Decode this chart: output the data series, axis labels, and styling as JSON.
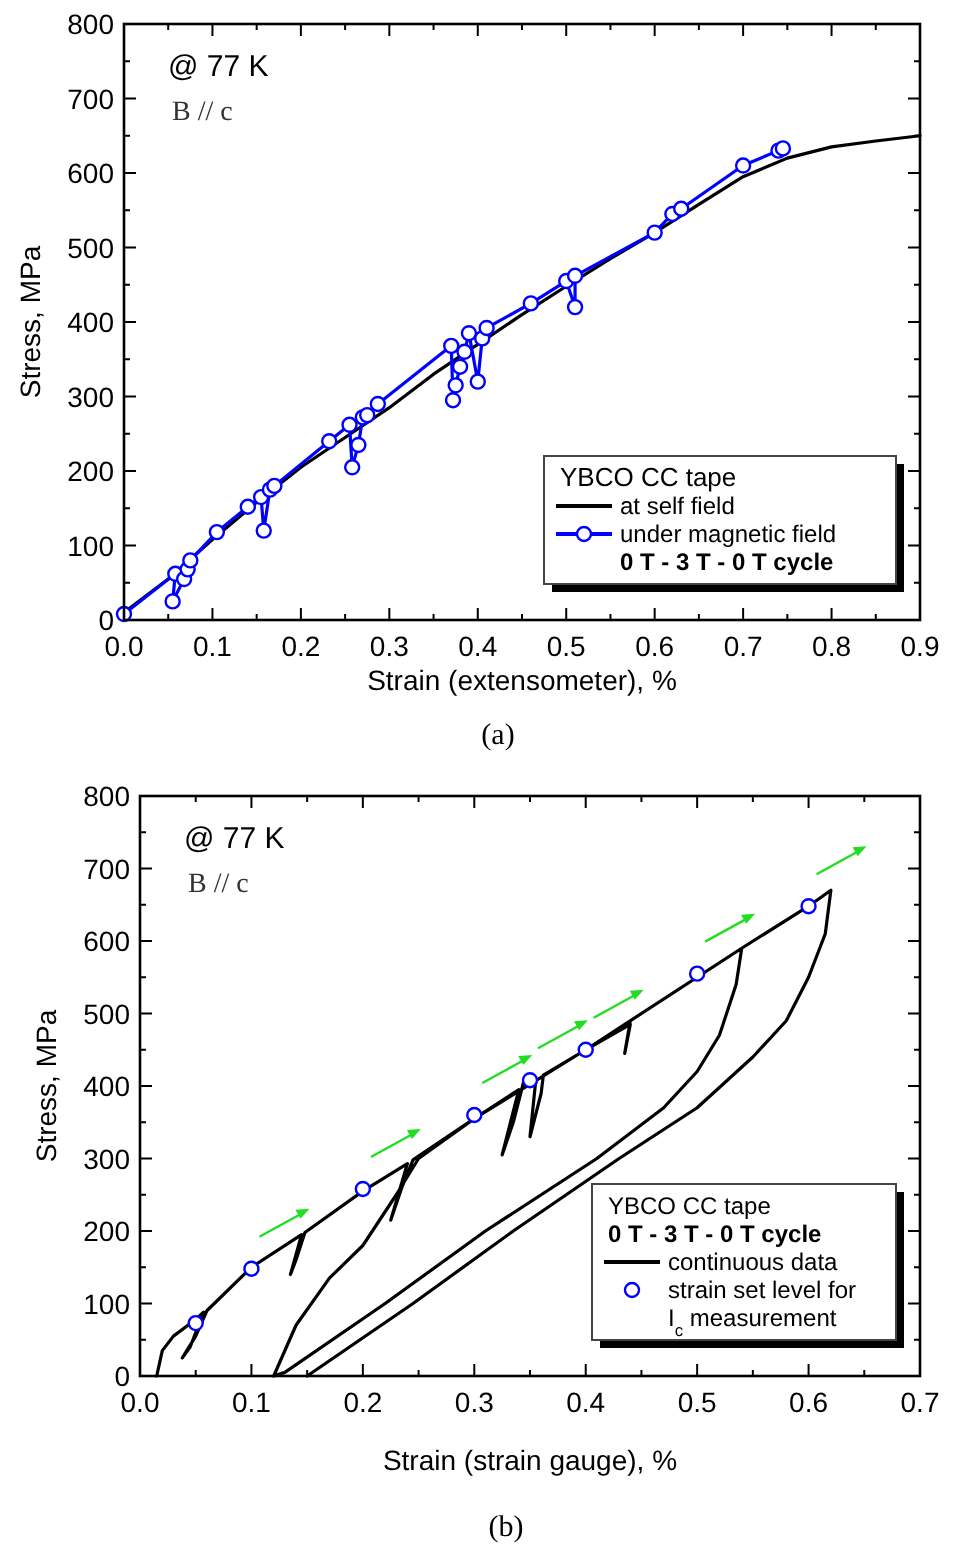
{
  "chart_data": [
    {
      "type": "line",
      "xlabel": "Strain (extensometer), %",
      "ylabel": "Stress, MPa",
      "legend_title": "YBCO CC tape",
      "legend": "bottom right",
      "grid": false,
      "annotations": [
        "@ 77 K",
        "B // c",
        "0 T - 3 T - 0 T cycle",
        "(a)"
      ],
      "xlim": [
        0,
        0.9
      ],
      "xticks": [
        {
          "value": 0,
          "label": "0.0"
        },
        {
          "value": 0.05,
          "label": null
        },
        0.1,
        {
          "value": 0.15,
          "label": null
        },
        0.2,
        {
          "value": 0.25,
          "label": null
        },
        0.3,
        {
          "value": 0.35,
          "label": null
        },
        0.4,
        {
          "value": 0.45,
          "label": null
        },
        0.5,
        {
          "value": 0.55,
          "label": null
        },
        0.6,
        {
          "value": 0.65,
          "label": null
        },
        0.7,
        {
          "value": 0.75,
          "label": null
        },
        0.8,
        {
          "value": 0.85,
          "label": null
        },
        0.9
      ],
      "ylim": [
        0,
        800
      ],
      "yticks": [
        0,
        {
          "value": 50,
          "label": null
        },
        100,
        {
          "value": 150,
          "label": null
        },
        200,
        {
          "value": 250,
          "label": null
        },
        300,
        {
          "value": 350,
          "label": null
        },
        400,
        {
          "value": 450,
          "label": null
        },
        500,
        {
          "value": 550,
          "label": null
        },
        600,
        {
          "value": 650,
          "label": null
        },
        700,
        {
          "value": 750,
          "label": null
        },
        800
      ],
      "series": [
        {
          "name": "at self field",
          "marker": "none",
          "color": "#000000",
          "x": [
            0,
            0.05,
            0.1,
            0.15,
            0.2,
            0.25,
            0.3,
            0.35,
            0.4,
            0.45,
            0.5,
            0.55,
            0.6,
            0.65,
            0.7,
            0.75,
            0.8,
            0.85,
            0.9
          ],
          "values": [
            10,
            55,
            108,
            158,
            205,
            245,
            285,
            330,
            370,
            410,
            448,
            485,
            520,
            558,
            595,
            620,
            635,
            643,
            650
          ]
        },
        {
          "name": "under magnetic field",
          "marker": "circle",
          "color": "#0000ff",
          "x": [
            0,
            0.058,
            0.055,
            0.068,
            0.072,
            0.075,
            0.105,
            0.14,
            0.155,
            0.158,
            0.165,
            0.17,
            0.232,
            0.255,
            0.258,
            0.265,
            0.27,
            0.275,
            0.287,
            0.37,
            0.372,
            0.375,
            0.38,
            0.385,
            0.39,
            0.4,
            0.405,
            0.41,
            0.46,
            0.5,
            0.51,
            0.51,
            0.6,
            0.62,
            0.63,
            0.7,
            0.74,
            0.745
          ],
          "values": [
            8,
            62,
            25,
            55,
            68,
            80,
            118,
            152,
            165,
            120,
            175,
            180,
            240,
            262,
            205,
            235,
            272,
            275,
            290,
            368,
            295,
            315,
            340,
            360,
            385,
            320,
            378,
            392,
            425,
            455,
            420,
            462,
            520,
            545,
            552,
            610,
            630,
            633
          ]
        }
      ]
    },
    {
      "type": "line",
      "xlabel": "Strain (strain gauge), %",
      "ylabel": "Stress, MPa",
      "legend_title": "YBCO CC tape",
      "legend": "bottom right",
      "grid": false,
      "annotations": [
        "@ 77 K",
        "B // c",
        "0 T - 3 T - 0 T cycle",
        "(b)"
      ],
      "xlim": [
        0,
        0.7
      ],
      "xticks": [
        {
          "value": 0,
          "label": "0.0"
        },
        {
          "value": 0.05,
          "label": null
        },
        0.1,
        {
          "value": 0.15,
          "label": null
        },
        0.2,
        {
          "value": 0.25,
          "label": null
        },
        0.3,
        {
          "value": 0.35,
          "label": null
        },
        0.4,
        {
          "value": 0.45,
          "label": null
        },
        0.5,
        {
          "value": 0.55,
          "label": null
        },
        0.6,
        {
          "value": 0.65,
          "label": null
        },
        0.7
      ],
      "ylim": [
        0,
        800
      ],
      "yticks": [
        0,
        {
          "value": 50,
          "label": null
        },
        100,
        {
          "value": 150,
          "label": null
        },
        200,
        {
          "value": 250,
          "label": null
        },
        300,
        {
          "value": 350,
          "label": null
        },
        400,
        {
          "value": 450,
          "label": null
        },
        500,
        {
          "value": 550,
          "label": null
        },
        600,
        {
          "value": 650,
          "label": null
        },
        700,
        {
          "value": 750,
          "label": null
        },
        800
      ],
      "series": [
        {
          "name": "continuous data",
          "marker": "none",
          "color": "#000000",
          "x": [
            0.015,
            0.02,
            0.03,
            0.05,
            0.057,
            0.045,
            0.038,
            0.05,
            0.06,
            0.1,
            0.145,
            0.135,
            0.14,
            0.148,
            0.2,
            0.24,
            0.225,
            0.235,
            0.245,
            0.3,
            0.34,
            0.325,
            0.335,
            0.345,
            0.355,
            0.35,
            0.36,
            0.362,
            0.4,
            0.44,
            0.435,
            0.44,
            0.5,
            0.54,
            0.535,
            0.52,
            0.5,
            0.47,
            0.41,
            0.31,
            0.22,
            0.13,
            0.12,
            0.14,
            0.17,
            0.2,
            0.23,
            0.25,
            0.3,
            0.4,
            0.54,
            0.6,
            0.62,
            0.615,
            0.6,
            0.58,
            0.55,
            0.5,
            0.43,
            0.335,
            0.245,
            0.15
          ],
          "values": [
            0,
            35,
            55,
            78,
            88,
            40,
            25,
            55,
            90,
            150,
            195,
            140,
            160,
            198,
            255,
            293,
            215,
            260,
            298,
            355,
            395,
            305,
            350,
            410,
            405,
            330,
            390,
            415,
            450,
            485,
            445,
            490,
            550,
            590,
            540,
            470,
            420,
            370,
            300,
            200,
            100,
            5,
            0,
            70,
            135,
            180,
            250,
            300,
            355,
            450,
            590,
            648,
            670,
            610,
            550,
            490,
            440,
            370,
            300,
            200,
            100,
            0
          ]
        },
        {
          "name": "strain set level for I$_{c}$ measurement",
          "type": "scatter",
          "marker": "circle",
          "color": "#0000ff",
          "x": [
            0.05,
            0.1,
            0.2,
            0.3,
            0.35,
            0.4,
            0.5,
            0.6
          ],
          "values": [
            73,
            148,
            258,
            360,
            408,
            450,
            555,
            648
          ]
        }
      ]
    }
  ]
}
